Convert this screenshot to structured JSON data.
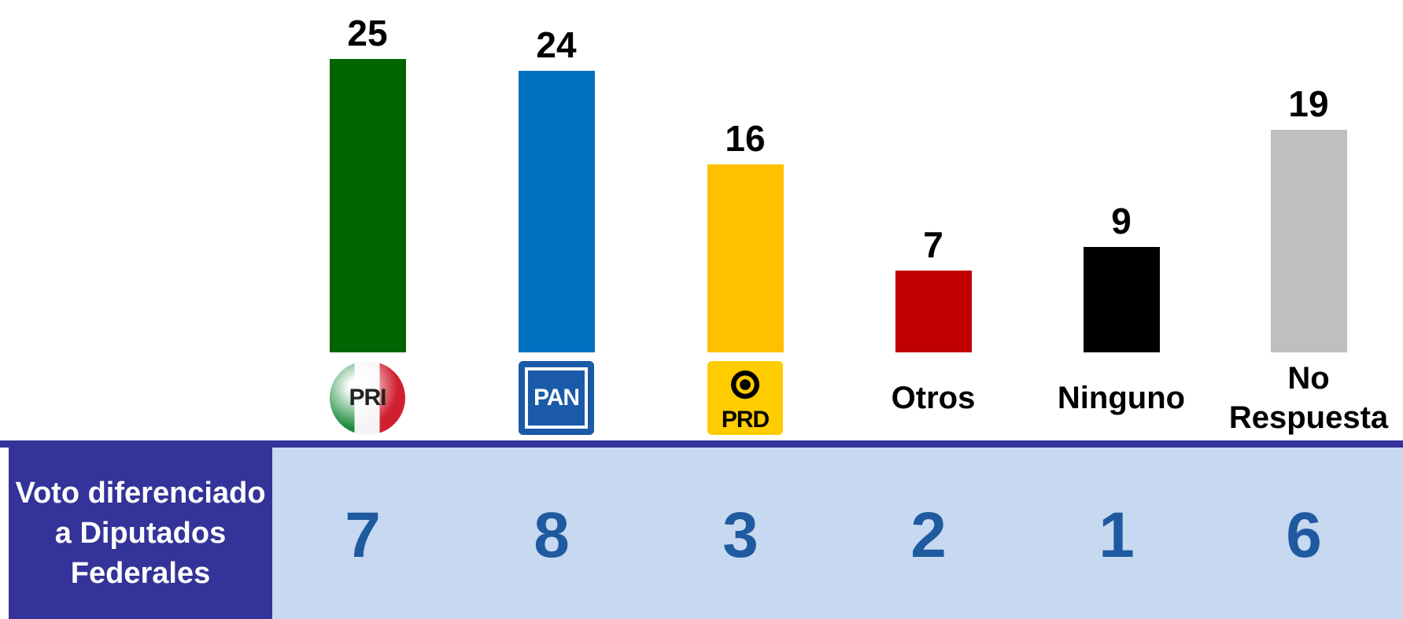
{
  "chart_data": {
    "type": "bar",
    "categories": [
      "PRI",
      "PAN",
      "PRD",
      "Otros",
      "Ninguno",
      "No Respuesta"
    ],
    "values": [
      25,
      24,
      16,
      7,
      9,
      19
    ],
    "colors": [
      "#006400",
      "#0070c0",
      "#ffc000",
      "#c00000",
      "#000000",
      "#bfbfbf"
    ]
  },
  "table": {
    "header": "Voto diferenciado a Diputados Federales",
    "values": [
      7,
      8,
      3,
      2,
      1,
      6
    ]
  }
}
